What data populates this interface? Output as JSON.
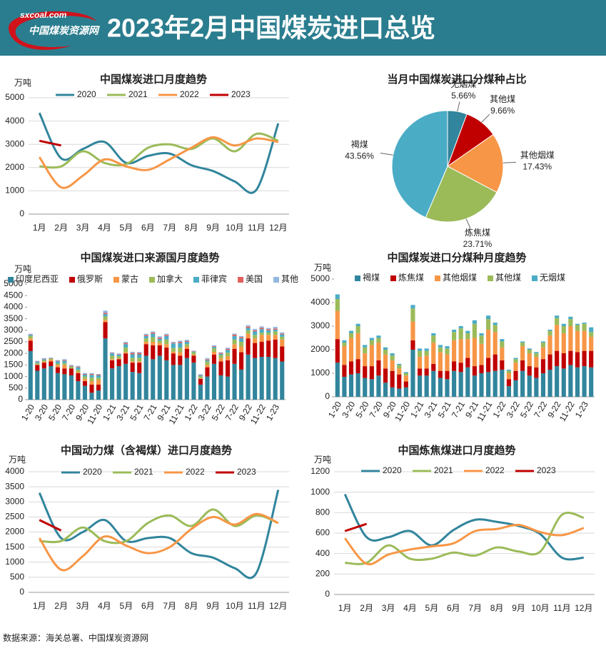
{
  "header": {
    "logo_url": "sxcoal.com",
    "logo_name": "中国煤炭资源网",
    "title": "2023年2月中国煤炭进口总览"
  },
  "source": "数据来源：海关总署、中国煤炭资源网",
  "chart_data": [
    {
      "type": "line",
      "title": "中国煤炭进口月度趋势",
      "y_unit": "万吨",
      "categories": [
        "1月",
        "2月",
        "3月",
        "4月",
        "5月",
        "6月",
        "7月",
        "8月",
        "9月",
        "10月",
        "11月",
        "12月"
      ],
      "ylim": [
        0,
        5000
      ],
      "yticks": [
        0,
        1000,
        2000,
        3000,
        4000,
        5000
      ],
      "grid": true,
      "series": [
        {
          "name": "2020",
          "color": "#31859c",
          "values": [
            4350,
            2400,
            2800,
            3100,
            2200,
            2500,
            2600,
            2100,
            1850,
            1400,
            1050,
            3900
          ]
        },
        {
          "name": "2021",
          "color": "#9bbb59",
          "values": [
            2050,
            2050,
            2700,
            2200,
            2150,
            2850,
            3000,
            2800,
            3250,
            2700,
            3450,
            3150
          ]
        },
        {
          "name": "2022",
          "color": "#f79646",
          "values": [
            2450,
            1150,
            1650,
            2350,
            2050,
            1900,
            2350,
            2850,
            3300,
            2950,
            3250,
            3100
          ]
        },
        {
          "name": "2023",
          "color": "#c00000",
          "values": [
            3150,
            2950,
            null,
            null,
            null,
            null,
            null,
            null,
            null,
            null,
            null,
            null
          ]
        }
      ]
    },
    {
      "type": "pie",
      "title": "当月中国煤炭进口分煤种占比",
      "categories": [
        "无烟煤",
        "其他煤",
        "其他烟煤",
        "炼焦煤",
        "褐煤"
      ],
      "values": [
        5.66,
        9.66,
        17.43,
        23.71,
        43.56
      ],
      "value_labels": [
        "5.66%",
        "9.66%",
        "17.43%",
        "23.71%",
        "43.56%"
      ],
      "colors": [
        "#31859c",
        "#c00000",
        "#f79646",
        "#9bbb59",
        "#4bacc6"
      ]
    },
    {
      "type": "stacked_bar",
      "title": "中国煤炭进口来源国月度趋势",
      "y_unit": "万吨",
      "categories": [
        "1-20",
        null,
        "3-20",
        null,
        "5-20",
        null,
        "7-20",
        null,
        "9-20",
        null,
        "11-20",
        null,
        "1-21",
        null,
        "3-21",
        null,
        "5-21",
        null,
        "7-21",
        null,
        "9-21",
        null,
        "11-21",
        null,
        "1-22",
        null,
        "3-22",
        null,
        "5-22",
        null,
        "7-22",
        null,
        "9-22",
        null,
        "11-22",
        null,
        "1-23",
        null
      ],
      "ylim": [
        0,
        5000
      ],
      "yticks": [
        0,
        500,
        1000,
        1500,
        2000,
        2500,
        3000,
        3500,
        4000,
        4500,
        5000
      ],
      "grid": false,
      "series": [
        {
          "name": "印度尼西亚",
          "color": "#31859c",
          "values": [
            2100,
            1250,
            1350,
            1450,
            1150,
            1100,
            1050,
            800,
            600,
            300,
            400,
            2650,
            1350,
            1450,
            1550,
            1200,
            1150,
            1900,
            1750,
            1900,
            1700,
            1500,
            1500,
            1800,
            1600,
            650,
            1000,
            1550,
            1050,
            1000,
            1550,
            1300,
            1950,
            1800,
            1850,
            1850,
            1800,
            1650
          ]
        },
        {
          "name": "俄罗斯",
          "color": "#c00000",
          "values": [
            450,
            250,
            250,
            200,
            250,
            250,
            300,
            350,
            200,
            350,
            250,
            700,
            350,
            300,
            450,
            400,
            450,
            500,
            600,
            450,
            550,
            500,
            400,
            400,
            300,
            250,
            400,
            400,
            600,
            700,
            650,
            750,
            700,
            650,
            650,
            700,
            800,
            650
          ]
        },
        {
          "name": "蒙古",
          "color": "#f79646",
          "values": [
            100,
            20,
            50,
            80,
            100,
            150,
            0,
            50,
            100,
            150,
            200,
            100,
            50,
            30,
            50,
            60,
            60,
            100,
            150,
            100,
            150,
            80,
            150,
            100,
            50,
            30,
            100,
            120,
            130,
            180,
            200,
            250,
            200,
            200,
            300,
            250,
            200,
            300
          ]
        },
        {
          "name": "加拿大",
          "color": "#9bbb59",
          "values": [
            100,
            60,
            50,
            50,
            60,
            80,
            70,
            100,
            100,
            150,
            100,
            150,
            150,
            100,
            200,
            150,
            150,
            150,
            200,
            100,
            200,
            150,
            200,
            100,
            100,
            80,
            150,
            150,
            150,
            150,
            200,
            200,
            150,
            150,
            100,
            100,
            150,
            120
          ]
        },
        {
          "name": "菲律宾",
          "color": "#4bacc6",
          "values": [
            50,
            50,
            50,
            0,
            100,
            100,
            20,
            100,
            80,
            120,
            100,
            100,
            100,
            70,
            150,
            150,
            150,
            100,
            150,
            80,
            150,
            200,
            200,
            100,
            20,
            40,
            50,
            60,
            50,
            120,
            150,
            150,
            100,
            150,
            150,
            100,
            80,
            100
          ]
        },
        {
          "name": "美国",
          "color": "#e0605c",
          "values": [
            20,
            20,
            20,
            10,
            20,
            30,
            30,
            30,
            30,
            40,
            30,
            50,
            20,
            20,
            50,
            60,
            60,
            50,
            50,
            60,
            50,
            30,
            50,
            40,
            20,
            20,
            40,
            30,
            40,
            50,
            60,
            50,
            60,
            50,
            60,
            50,
            50,
            40
          ]
        },
        {
          "name": "其他",
          "color": "#93b8e0",
          "values": [
            30,
            30,
            30,
            30,
            30,
            40,
            30,
            30,
            40,
            40,
            30,
            100,
            30,
            30,
            50,
            50,
            40,
            50,
            50,
            50,
            50,
            40,
            50,
            50,
            30,
            30,
            60,
            40,
            30,
            50,
            50,
            50,
            60,
            60,
            60,
            50,
            70,
            50
          ]
        }
      ]
    },
    {
      "type": "stacked_bar",
      "title": "中国煤炭进口分煤种月度趋势",
      "y_unit": "万吨",
      "categories": [
        "1-20",
        null,
        "3-20",
        null,
        "5-20",
        null,
        "7-20",
        null,
        "9-20",
        null,
        "11-20",
        null,
        "1-21",
        null,
        "3-21",
        null,
        "5-21",
        null,
        "7-21",
        null,
        "9-21",
        null,
        "11-21",
        null,
        "1-22",
        null,
        "3-22",
        null,
        "5-22",
        null,
        "7-22",
        null,
        "9-22",
        null,
        "11-22",
        null,
        "1-23",
        null
      ],
      "ylim": [
        0,
        5000
      ],
      "yticks": [
        0,
        1000,
        2000,
        3000,
        4000,
        5000
      ],
      "grid": false,
      "series": [
        {
          "name": "褐煤",
          "color": "#31859c",
          "values": [
            1450,
            850,
            950,
            1000,
            800,
            750,
            900,
            600,
            400,
            350,
            400,
            2000,
            900,
            900,
            1100,
            800,
            750,
            1100,
            1050,
            1250,
            900,
            1000,
            1050,
            1100,
            1150,
            450,
            700,
            1100,
            900,
            800,
            1000,
            1150,
            1300,
            1200,
            1350,
            1250,
            1300,
            1250
          ]
        },
        {
          "name": "炼焦煤",
          "color": "#c00000",
          "values": [
            1000,
            500,
            550,
            600,
            500,
            550,
            650,
            600,
            700,
            600,
            250,
            400,
            300,
            300,
            300,
            300,
            350,
            400,
            400,
            400,
            400,
            350,
            600,
            700,
            400,
            300,
            400,
            450,
            400,
            450,
            600,
            650,
            650,
            650,
            600,
            650,
            650,
            700
          ]
        },
        {
          "name": "其他烟煤",
          "color": "#f79646",
          "values": [
            1200,
            800,
            1000,
            1100,
            550,
            900,
            750,
            600,
            450,
            250,
            250,
            800,
            500,
            550,
            900,
            800,
            700,
            900,
            1000,
            800,
            1200,
            900,
            1200,
            950,
            550,
            250,
            350,
            600,
            550,
            450,
            500,
            800,
            1100,
            850,
            1050,
            900,
            850,
            600
          ]
        },
        {
          "name": "其他煤",
          "color": "#9bbb59",
          "values": [
            500,
            150,
            200,
            300,
            250,
            200,
            200,
            200,
            200,
            150,
            100,
            550,
            250,
            200,
            300,
            200,
            250,
            350,
            450,
            250,
            600,
            350,
            450,
            300,
            250,
            100,
            150,
            150,
            150,
            150,
            200,
            200,
            300,
            300,
            300,
            250,
            300,
            200
          ]
        },
        {
          "name": "无烟煤",
          "color": "#4bacc6",
          "values": [
            200,
            100,
            100,
            100,
            100,
            100,
            100,
            100,
            100,
            50,
            50,
            150,
            100,
            100,
            100,
            100,
            100,
            100,
            100,
            100,
            150,
            100,
            150,
            100,
            100,
            50,
            50,
            50,
            50,
            50,
            50,
            50,
            100,
            100,
            100,
            50,
            50,
            200
          ]
        }
      ]
    },
    {
      "type": "line",
      "title": "中国动力煤（含褐煤）进口月度趋势",
      "y_unit": "万吨",
      "categories": [
        "1月",
        "2月",
        "3月",
        "4月",
        "5月",
        "6月",
        "7月",
        "8月",
        "9月",
        "10月",
        "11月",
        "12月"
      ],
      "ylim": [
        0,
        4000
      ],
      "yticks": [
        0,
        500,
        1000,
        1500,
        2000,
        2500,
        3000,
        3500,
        4000
      ],
      "grid": true,
      "series": [
        {
          "name": "2020",
          "color": "#31859c",
          "values": [
            3300,
            1800,
            2000,
            2400,
            1700,
            1800,
            1800,
            1300,
            1150,
            800,
            650,
            3400
          ]
        },
        {
          "name": "2021",
          "color": "#9bbb59",
          "values": [
            1700,
            1700,
            2150,
            1700,
            1700,
            2300,
            2550,
            2200,
            2750,
            2200,
            2550,
            2300
          ]
        },
        {
          "name": "2022",
          "color": "#f79646",
          "values": [
            1800,
            750,
            1200,
            1850,
            1550,
            1300,
            1500,
            2100,
            2500,
            2250,
            2600,
            2300
          ]
        },
        {
          "name": "2023",
          "color": "#c00000",
          "values": [
            2400,
            2050,
            null,
            null,
            null,
            null,
            null,
            null,
            null,
            null,
            null,
            null
          ]
        }
      ]
    },
    {
      "type": "line",
      "title": "中国炼焦煤进口月度趋势",
      "y_unit": "万吨",
      "categories": [
        "1月",
        "2月",
        "3月",
        "4月",
        "5月",
        "6月",
        "7月",
        "8月",
        "9月",
        "10月",
        "11月",
        "12月"
      ],
      "ylim": [
        0,
        1200
      ],
      "yticks": [
        0,
        200,
        400,
        600,
        800,
        1000,
        1200
      ],
      "grid": true,
      "series": [
        {
          "name": "2020",
          "color": "#31859c",
          "values": [
            980,
            560,
            560,
            620,
            480,
            630,
            730,
            710,
            670,
            590,
            360,
            360
          ]
        },
        {
          "name": "2021",
          "color": "#9bbb59",
          "values": [
            310,
            310,
            480,
            350,
            350,
            410,
            380,
            460,
            420,
            420,
            780,
            750
          ]
        },
        {
          "name": "2022",
          "color": "#f79646",
          "values": [
            550,
            300,
            390,
            440,
            470,
            500,
            620,
            640,
            680,
            610,
            580,
            650
          ]
        },
        {
          "name": "2023",
          "color": "#c00000",
          "values": [
            620,
            690,
            null,
            null,
            null,
            null,
            null,
            null,
            null,
            null,
            null,
            null
          ]
        }
      ]
    }
  ]
}
